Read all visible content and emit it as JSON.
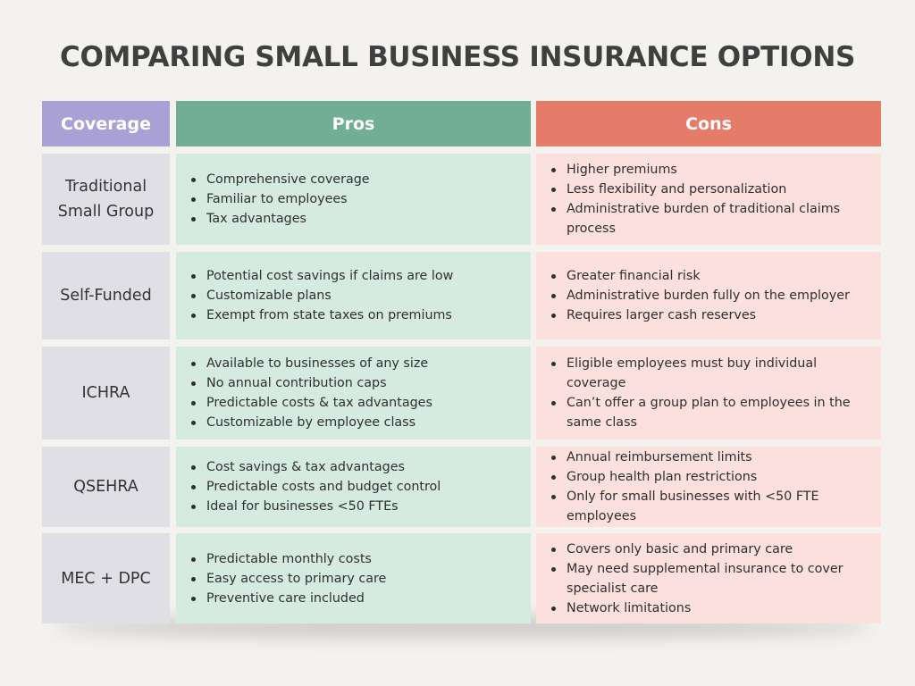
{
  "title": "COMPARING SMALL BUSINESS INSURANCE OPTIONS",
  "headers": {
    "coverage": "Coverage",
    "pros": "Pros",
    "cons": "Cons"
  },
  "rows": [
    {
      "coverage": "Traditional Small Group",
      "pros": [
        "Comprehensive coverage",
        "Familiar to employees",
        "Tax advantages"
      ],
      "cons": [
        "Higher premiums",
        "Less flexibility and personalization",
        "Administrative burden of traditional claims process"
      ]
    },
    {
      "coverage": "Self-Funded",
      "pros": [
        "Potential cost savings if claims are low",
        "Customizable plans",
        "Exempt from state taxes on premiums"
      ],
      "cons": [
        "Greater financial risk",
        "Administrative burden fully on the employer",
        "Requires larger cash reserves"
      ]
    },
    {
      "coverage": "ICHRA",
      "pros": [
        "Available to businesses of any size",
        "No annual contribution caps",
        "Predictable costs & tax advantages",
        "Customizable by employee class"
      ],
      "cons": [
        "Eligible employees must buy individual coverage",
        "Can’t offer a group plan to employees in the same class"
      ]
    },
    {
      "coverage": "QSEHRA",
      "pros": [
        "Cost savings & tax advantages",
        "Predictable costs and budget control",
        "Ideal for businesses <50 FTEs"
      ],
      "cons": [
        "Annual reimbursement limits",
        "Group health plan restrictions",
        "Only for small businesses with <50 FTE employees"
      ]
    },
    {
      "coverage": "MEC + DPC",
      "pros": [
        "Predictable monthly costs",
        "Easy access to primary care",
        "Preventive care included"
      ],
      "cons": [
        "Covers only basic and primary care",
        "May need supplemental insurance to cover specialist care",
        "Network limitations"
      ]
    }
  ],
  "colors": {
    "coverage_header": "#a9a1d6",
    "pros_header": "#72ad95",
    "cons_header": "#e47c69",
    "coverage_cell": "#e0dfe6",
    "pros_cell": "#d5ebe1",
    "cons_cell": "#fce0de"
  }
}
